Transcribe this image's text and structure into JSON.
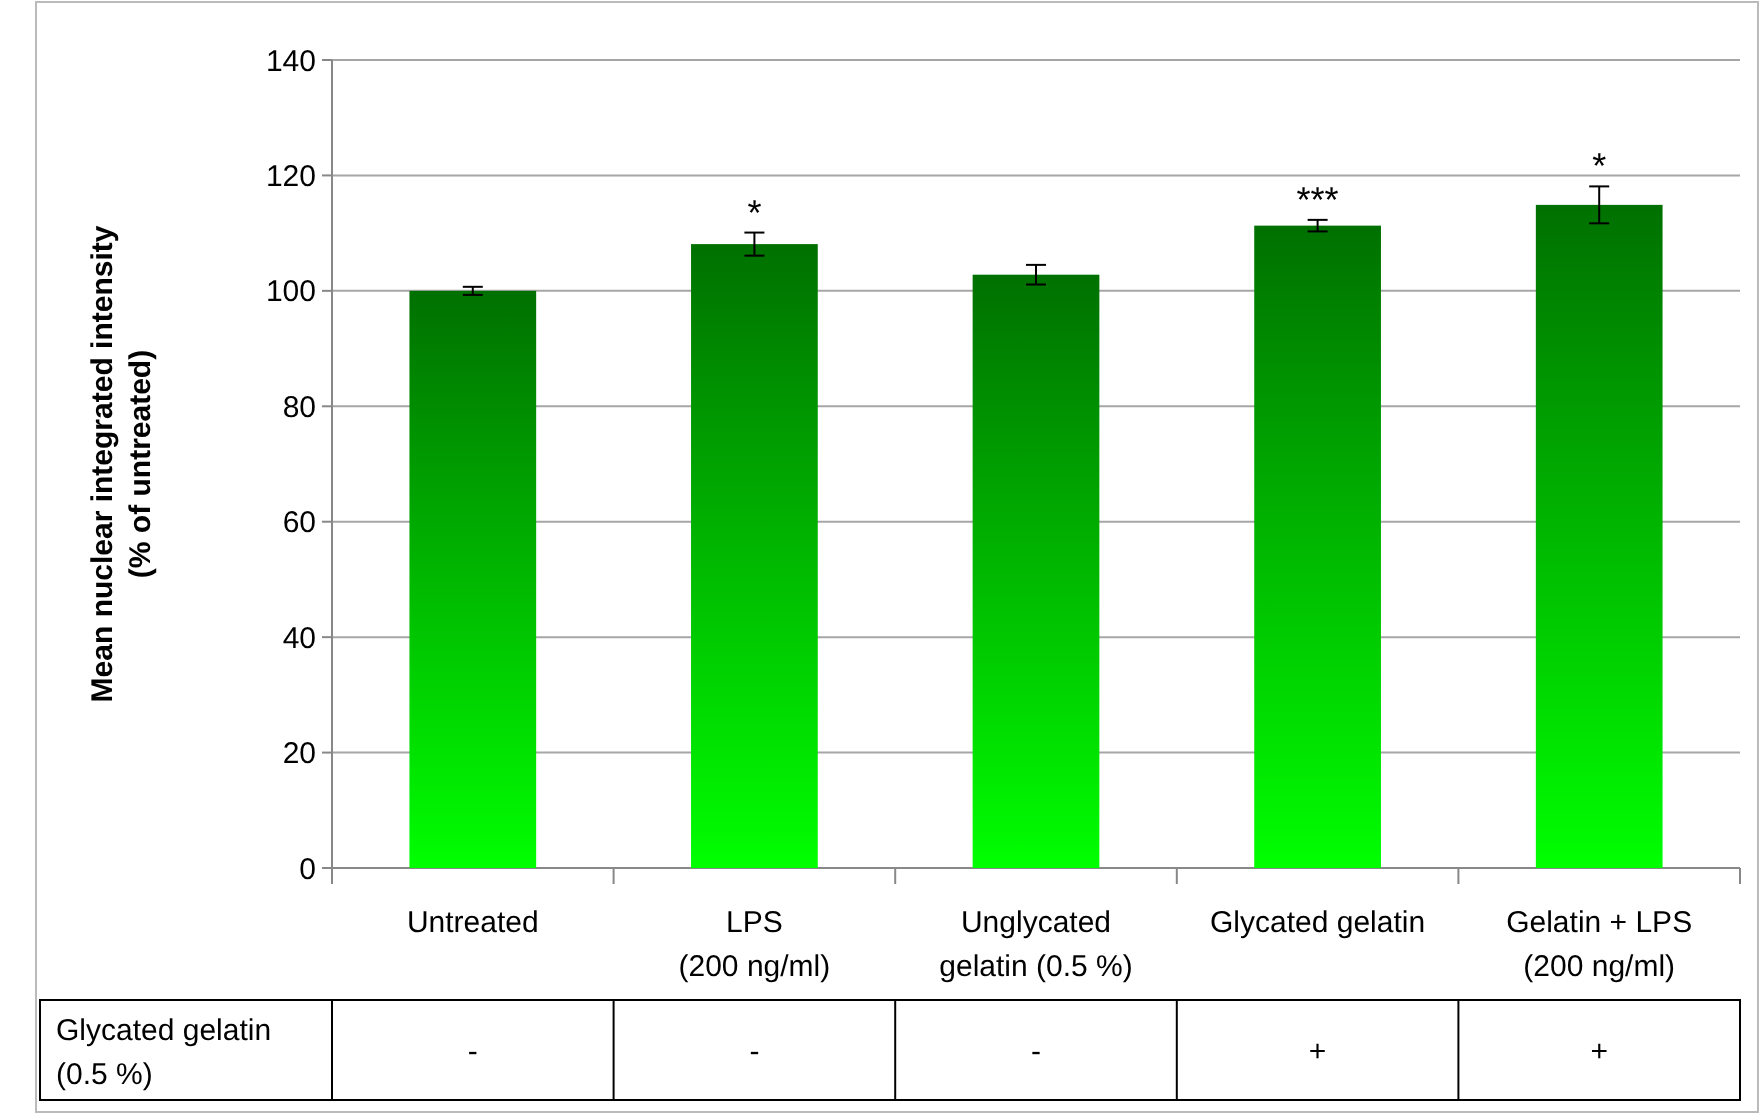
{
  "chart_data": {
    "type": "bar",
    "ylabel": "Mean nuclear integrated intensity\n(% of untreated)",
    "categories": [
      "Untreated",
      "LPS\n(200 ng/ml)",
      "Unglycated\ngelatin (0.5 %)",
      "Glycated gelatin",
      "Gelatin + LPS\n(200 ng/ml)"
    ],
    "values": [
      100,
      108.1,
      102.8,
      111.3,
      114.9
    ],
    "errors": [
      0.7,
      2,
      1.7,
      1,
      3.2
    ],
    "color": "#00ff00",
    "ylim": [
      0,
      140
    ],
    "yticks": [
      0,
      20,
      40,
      60,
      80,
      100,
      120,
      140
    ],
    "grid": "y",
    "annotations": [
      {
        "text": "*",
        "x": "LPS\n(200 ng/ml)",
        "y": 110.1
      },
      {
        "text": "***",
        "x": "Glycated gelatin",
        "y": 112.3
      },
      {
        "text": "*",
        "x": "Gelatin + LPS\n(200 ng/ml)",
        "y": 118.1
      },
      "Glycated gelatin\n(0.5 %)",
      "-",
      "-",
      "-",
      "+",
      "+"
    ]
  }
}
